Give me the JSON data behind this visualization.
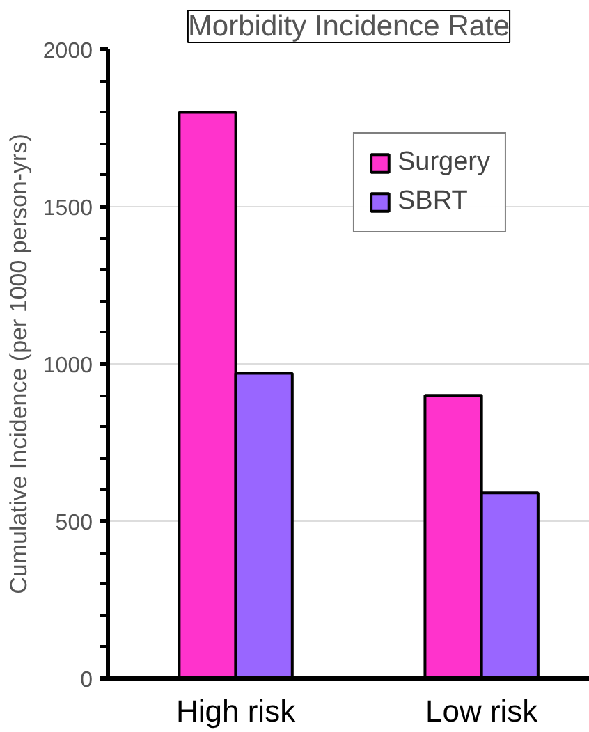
{
  "chart_data": {
    "type": "bar",
    "title": "Morbidity Incidence Rate",
    "ylabel": "Cumulative Incidence (per 1000 person-yrs)",
    "categories": [
      "High risk",
      "Low risk"
    ],
    "series": [
      {
        "name": "Surgery",
        "color": "#ff33cc",
        "values": [
          1800,
          900
        ]
      },
      {
        "name": "SBRT",
        "color": "#9966ff",
        "values": [
          970,
          590
        ]
      }
    ],
    "ylim": [
      0,
      2000
    ],
    "yticks": [
      0,
      500,
      1000,
      1500,
      2000
    ],
    "grid": "y",
    "legend": "top right"
  }
}
